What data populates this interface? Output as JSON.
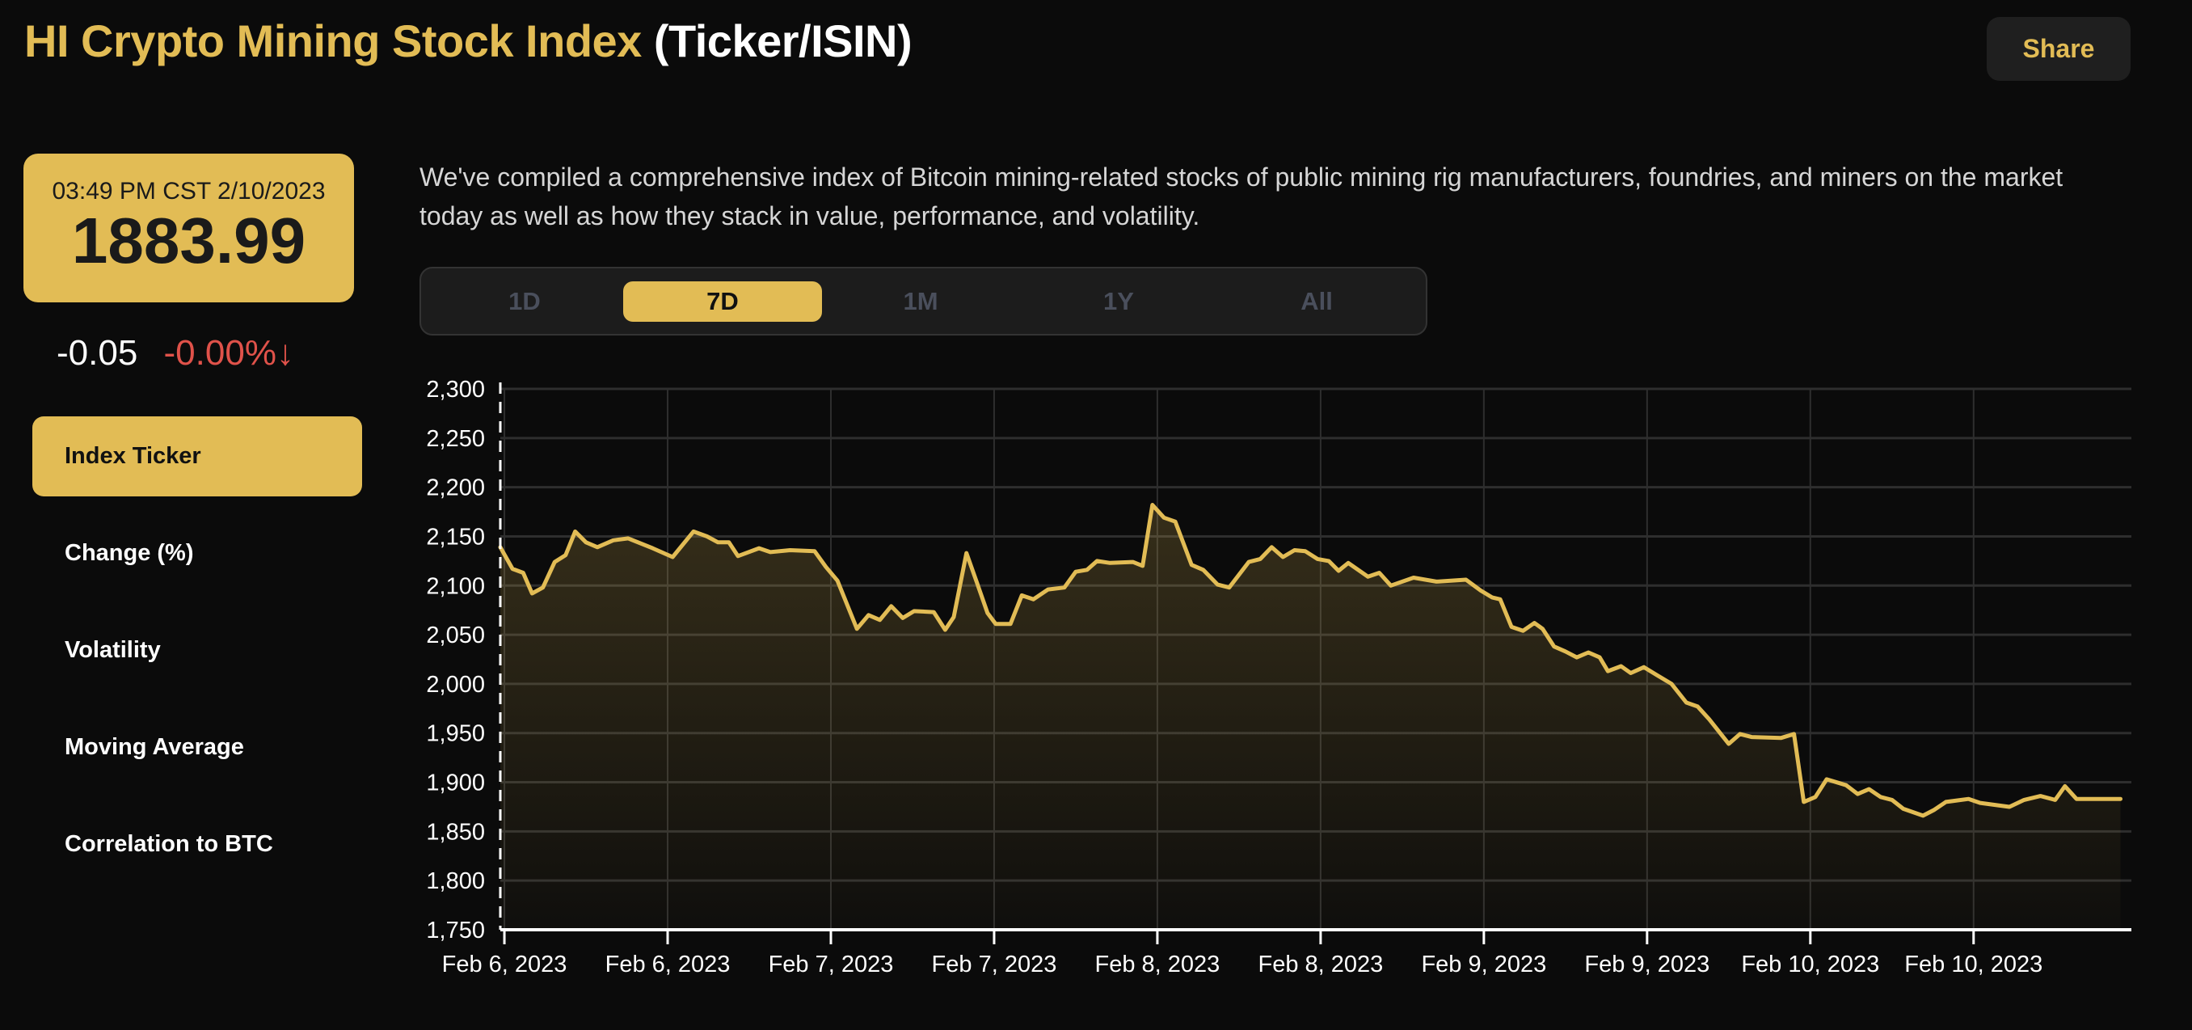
{
  "header": {
    "title_main": "HI Crypto Mining Stock Index",
    "title_suffix": "(Ticker/ISIN)",
    "share_label": "Share"
  },
  "price": {
    "timestamp": "03:49 PM CST 2/10/2023",
    "value": "1883.99",
    "change": "-0.05",
    "change_pct": "-0.00%",
    "direction_icon": "arrow-down-icon",
    "arrow": "↓"
  },
  "sidebar": {
    "items": [
      {
        "label": "Index Ticker",
        "active": true
      },
      {
        "label": "Change (%)"
      },
      {
        "label": "Volatility"
      },
      {
        "label": "Moving Average"
      },
      {
        "label": "Correlation to BTC"
      }
    ]
  },
  "description": "We've compiled a comprehensive index of Bitcoin mining-related stocks of public mining rig manufacturers, foundries, and miners on the market today as well as how they stack in value, performance, and volatility.",
  "range_tabs": [
    {
      "label": "1D"
    },
    {
      "label": "7D",
      "active": true
    },
    {
      "label": "1M"
    },
    {
      "label": "1Y"
    },
    {
      "label": "All"
    }
  ],
  "colors": {
    "accent": "#e2bc55",
    "negative": "#e0524a",
    "background": "#0b0b0b"
  },
  "chart_data": {
    "type": "area",
    "ylim": [
      1750,
      2300
    ],
    "yticks": [
      1750,
      1800,
      1850,
      1900,
      1950,
      2000,
      2050,
      2100,
      2150,
      2200,
      2250,
      2300
    ],
    "ytick_labels": [
      "1,750",
      "1,800",
      "1,850",
      "1,900",
      "1,950",
      "2,000",
      "2,050",
      "2,100",
      "2,150",
      "2,200",
      "2,250",
      "2,300"
    ],
    "xlim": [
      "2023-02-05T23:42",
      "2023-02-10T23:36"
    ],
    "xticks": [
      "2023-02-06T00:00",
      "2023-02-06T12:00",
      "2023-02-07T00:00",
      "2023-02-07T12:00",
      "2023-02-08T00:00",
      "2023-02-08T12:00",
      "2023-02-09T00:00",
      "2023-02-09T12:00",
      "2023-02-10T00:00",
      "2023-02-10T12:00"
    ],
    "xtick_labels": [
      "Feb 6, 2023",
      "Feb 6, 2023",
      "Feb 7, 2023",
      "Feb 7, 2023",
      "Feb 8, 2023",
      "Feb 8, 2023",
      "Feb 9, 2023",
      "Feb 9, 2023",
      "Feb 10, 2023",
      "Feb 10, 2023"
    ],
    "grid": true,
    "line_color": "#e2bc55",
    "points": [
      [
        "2023-02-05T23:42",
        2139
      ],
      [
        "2023-02-06T00:36",
        2117
      ],
      [
        "2023-02-06T01:23",
        2113
      ],
      [
        "2023-02-06T02:02",
        2092
      ],
      [
        "2023-02-06T02:50",
        2098
      ],
      [
        "2023-02-06T03:42",
        2124
      ],
      [
        "2023-02-06T04:30",
        2131
      ],
      [
        "2023-02-06T05:12",
        2155
      ],
      [
        "2023-02-06T06:00",
        2144
      ],
      [
        "2023-02-06T06:50",
        2139
      ],
      [
        "2023-02-06T08:00",
        2146
      ],
      [
        "2023-02-06T09:06",
        2148
      ],
      [
        "2023-02-06T10:54",
        2138
      ],
      [
        "2023-02-06T12:22",
        2129
      ],
      [
        "2023-02-06T13:54",
        2155
      ],
      [
        "2023-02-06T14:54",
        2150
      ],
      [
        "2023-02-06T15:42",
        2144
      ],
      [
        "2023-02-06T16:30",
        2144
      ],
      [
        "2023-02-06T17:10",
        2130
      ],
      [
        "2023-02-06T18:43",
        2138
      ],
      [
        "2023-02-06T19:33",
        2134
      ],
      [
        "2023-02-06T21:00",
        2136
      ],
      [
        "2023-02-06T22:48",
        2135
      ],
      [
        "2023-02-06T23:38",
        2119
      ],
      [
        "2023-02-07T00:29",
        2105
      ],
      [
        "2023-02-07T01:55",
        2056
      ],
      [
        "2023-02-07T02:46",
        2070
      ],
      [
        "2023-02-07T03:36",
        2065
      ],
      [
        "2023-02-07T04:26",
        2079
      ],
      [
        "2023-02-07T05:17",
        2067
      ],
      [
        "2023-02-07T06:07",
        2074
      ],
      [
        "2023-02-07T07:34",
        2073
      ],
      [
        "2023-02-07T08:24",
        2055
      ],
      [
        "2023-02-07T09:02",
        2068
      ],
      [
        "2023-02-07T09:58",
        2133
      ],
      [
        "2023-02-07T10:41",
        2105
      ],
      [
        "2023-02-07T11:31",
        2072
      ],
      [
        "2023-02-07T12:07",
        2061
      ],
      [
        "2023-02-07T13:12",
        2061
      ],
      [
        "2023-02-07T14:02",
        2090
      ],
      [
        "2023-02-07T14:53",
        2086
      ],
      [
        "2023-02-07T15:58",
        2096
      ],
      [
        "2023-02-07T17:10",
        2098
      ],
      [
        "2023-02-07T18:00",
        2114
      ],
      [
        "2023-02-07T18:50",
        2116
      ],
      [
        "2023-02-07T19:34",
        2125
      ],
      [
        "2023-02-07T20:31",
        2123
      ],
      [
        "2023-02-07T22:12",
        2124
      ],
      [
        "2023-02-07T22:55",
        2120
      ],
      [
        "2023-02-07T23:38",
        2182
      ],
      [
        "2023-02-08T00:29",
        2169
      ],
      [
        "2023-02-08T01:19",
        2165
      ],
      [
        "2023-02-08T02:31",
        2121
      ],
      [
        "2023-02-08T03:22",
        2116
      ],
      [
        "2023-02-08T04:26",
        2101
      ],
      [
        "2023-02-08T05:17",
        2098
      ],
      [
        "2023-02-08T06:43",
        2124
      ],
      [
        "2023-02-08T07:34",
        2127
      ],
      [
        "2023-02-08T08:24",
        2139
      ],
      [
        "2023-02-08T09:14",
        2129
      ],
      [
        "2023-02-08T10:05",
        2136
      ],
      [
        "2023-02-08T10:52",
        2135
      ],
      [
        "2023-02-08T11:46",
        2127
      ],
      [
        "2023-02-08T12:36",
        2125
      ],
      [
        "2023-02-08T13:19",
        2115
      ],
      [
        "2023-02-08T14:02",
        2123
      ],
      [
        "2023-02-08T15:29",
        2109
      ],
      [
        "2023-02-08T16:19",
        2113
      ],
      [
        "2023-02-08T17:10",
        2100
      ],
      [
        "2023-02-08T18:50",
        2108
      ],
      [
        "2023-02-08T20:31",
        2104
      ],
      [
        "2023-02-08T22:41",
        2106
      ],
      [
        "2023-02-08T23:46",
        2095
      ],
      [
        "2023-02-09T00:36",
        2088
      ],
      [
        "2023-02-09T01:12",
        2086
      ],
      [
        "2023-02-09T02:02",
        2058
      ],
      [
        "2023-02-09T02:53",
        2054
      ],
      [
        "2023-02-09T03:43",
        2062
      ],
      [
        "2023-02-09T04:19",
        2056
      ],
      [
        "2023-02-09T05:10",
        2038
      ],
      [
        "2023-02-09T06:00",
        2033
      ],
      [
        "2023-02-09T06:50",
        2027
      ],
      [
        "2023-02-09T07:41",
        2032
      ],
      [
        "2023-02-09T08:31",
        2027
      ],
      [
        "2023-02-09T09:07",
        2013
      ],
      [
        "2023-02-09T10:05",
        2018
      ],
      [
        "2023-02-09T10:48",
        2011
      ],
      [
        "2023-02-09T11:46",
        2017
      ],
      [
        "2023-02-09T12:43",
        2009
      ],
      [
        "2023-02-09T13:48",
        2000
      ],
      [
        "2023-02-09T14:53",
        1981
      ],
      [
        "2023-02-09T15:43",
        1977
      ],
      [
        "2023-02-09T16:34",
        1964
      ],
      [
        "2023-02-09T18:00",
        1939
      ],
      [
        "2023-02-09T18:50",
        1949
      ],
      [
        "2023-02-09T19:41",
        1946
      ],
      [
        "2023-02-09T21:50",
        1945
      ],
      [
        "2023-02-09T22:48",
        1949
      ],
      [
        "2023-02-09T23:31",
        1880
      ],
      [
        "2023-02-10T00:22",
        1885
      ],
      [
        "2023-02-10T01:12",
        1903
      ],
      [
        "2023-02-10T02:38",
        1897
      ],
      [
        "2023-02-10T03:29",
        1888
      ],
      [
        "2023-02-10T04:19",
        1893
      ],
      [
        "2023-02-10T05:10",
        1885
      ],
      [
        "2023-02-10T06:00",
        1882
      ],
      [
        "2023-02-10T06:50",
        1873
      ],
      [
        "2023-02-10T08:17",
        1866
      ],
      [
        "2023-02-10T09:07",
        1872
      ],
      [
        "2023-02-10T09:58",
        1880
      ],
      [
        "2023-02-10T11:38",
        1883
      ],
      [
        "2023-02-10T12:29",
        1879
      ],
      [
        "2023-02-10T14:38",
        1875
      ],
      [
        "2023-02-10T15:43",
        1882
      ],
      [
        "2023-02-10T16:55",
        1886
      ],
      [
        "2023-02-10T18:00",
        1882
      ],
      [
        "2023-02-10T18:43",
        1896
      ],
      [
        "2023-02-10T19:34",
        1883
      ],
      [
        "2023-02-10T22:48",
        1883
      ]
    ]
  }
}
